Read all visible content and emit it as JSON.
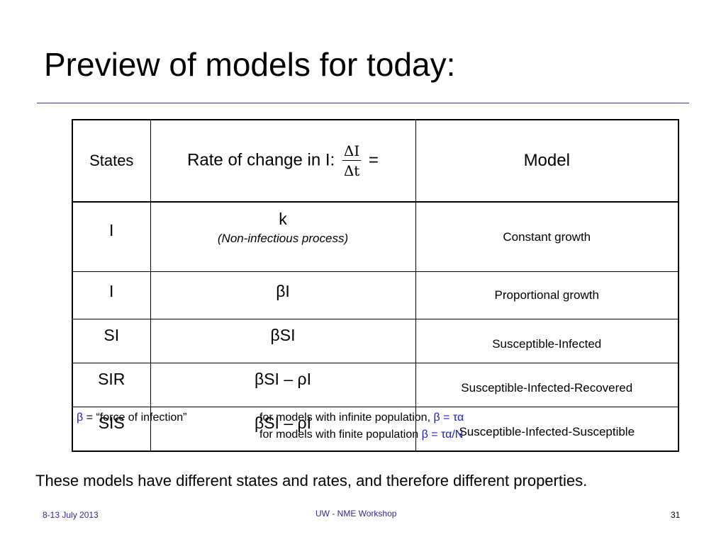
{
  "slide": {
    "title": "Preview of models for today:"
  },
  "table": {
    "headers": {
      "states": "States",
      "rate_prefix": "Rate of change in I:",
      "rate_numerator": "ΔI",
      "rate_denominator": "Δt",
      "rate_suffix": "=",
      "model": "Model"
    },
    "rows": [
      {
        "state": "I",
        "rate": "k",
        "rate_note": "(Non-infectious process)",
        "model": "Constant growth"
      },
      {
        "state": "I",
        "rate": "βI",
        "model": "Proportional growth"
      },
      {
        "state": "SI",
        "rate": "βSI",
        "model": "Susceptible-Infected"
      },
      {
        "state": "SIR",
        "rate": "βSI – ρI",
        "model": "Susceptible-Infected-Recovered"
      },
      {
        "state": "SIS",
        "rate": "βSI – ρI",
        "model": "Susceptible-Infected-Susceptible"
      }
    ]
  },
  "notes": {
    "beta_symbol": "β",
    "beta_definition": " = “force of infection”",
    "infinite_prefix": "for models with infinite population, ",
    "infinite_formula": "β = τα",
    "finite_prefix": "for models with finite population ",
    "finite_formula": "β = τα/N"
  },
  "summary": "These models have different states and rates, and therefore different properties.",
  "footer": {
    "date": "8-13 July 2013",
    "event": "UW - NME Workshop",
    "page_number": "31"
  },
  "colors": {
    "accent": "#1c1cc6",
    "rule": "#3b3b9b",
    "footer_text": "#2a2a8a"
  }
}
